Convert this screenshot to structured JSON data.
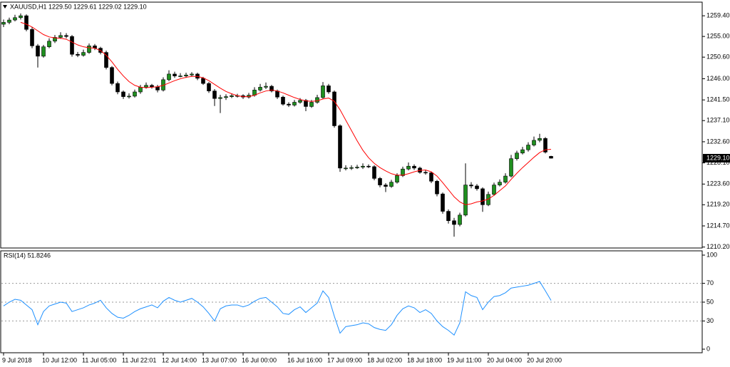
{
  "chart_data": [
    {
      "type": "candlestick",
      "title": "XAUUSD,H1  1229.50 1229.61 1229.02 1229.10",
      "categories": [
        "9 Jul 2018",
        null,
        null,
        null,
        null,
        null,
        null,
        "10 Jul 12:00",
        null,
        null,
        null,
        null,
        null,
        null,
        "11 Jul 05:00",
        null,
        null,
        null,
        null,
        null,
        null,
        "11 Jul 22:01",
        null,
        null,
        null,
        null,
        null,
        null,
        "12 Jul 14:00",
        null,
        null,
        null,
        null,
        null,
        null,
        "13 Jul 07:00",
        null,
        null,
        null,
        null,
        null,
        null,
        "16 Jul 00:00",
        null,
        null,
        null,
        null,
        null,
        null,
        null,
        "16 Jul 16:00",
        null,
        null,
        null,
        null,
        null,
        null,
        "17 Jul 09:00",
        null,
        null,
        null,
        null,
        null,
        null,
        "18 Jul 02:00",
        null,
        null,
        null,
        null,
        null,
        null,
        "18 Jul 18:00",
        null,
        null,
        null,
        null,
        null,
        null,
        "19 Jul 11:00",
        null,
        null,
        null,
        null,
        null,
        null,
        "20 Jul 04:00",
        null,
        null,
        null,
        null,
        null,
        null,
        "20 Jul 20:00",
        null,
        null,
        null,
        null
      ],
      "open": [
        1257.6,
        1258.0,
        1258.5,
        1259.0,
        1259.4,
        1256.5,
        1253.0,
        1250.8,
        1252.8,
        1254.0,
        1254.8,
        1255.2,
        1255.0,
        1251.2,
        1251.0,
        1251.6,
        1253.0,
        1252.5,
        1251.6,
        1248.4,
        1245.0,
        1243.2,
        1242.2,
        1242.3,
        1243.2,
        1244.2,
        1244.6,
        1244.3,
        1243.6,
        1245.8,
        1247.0,
        1246.6,
        1246.6,
        1246.8,
        1247.0,
        1246.1,
        1245.0,
        1243.4,
        1241.8,
        1242.0,
        1242.2,
        1242.4,
        1242.4,
        1242.1,
        1242.5,
        1243.6,
        1244.2,
        1244.4,
        1243.4,
        1242.1,
        1240.6,
        1240.4,
        1241.0,
        1241.4,
        1240.1,
        1241.0,
        1242.0,
        1244.5,
        1243.2,
        1236.0,
        1227.0,
        1227.0,
        1227.1,
        1227.2,
        1227.4,
        1227.3,
        1224.8,
        1223.4,
        1223.1,
        1224.0,
        1225.4,
        1226.8,
        1227.4,
        1227.0,
        1226.1,
        1226.0,
        1224.2,
        1221.5,
        1217.8,
        1215.8,
        1215.0,
        1217.0,
        1223.4,
        1223.2,
        1222.6,
        1219.2,
        1221.4,
        1223.4,
        1224.0,
        1225.3,
        1229.0,
        1230.2,
        1230.9,
        1231.9,
        1232.9,
        1233.3,
        1229.5
      ],
      "high": [
        1258.6,
        1259.0,
        1259.6,
        1259.9,
        1259.7,
        1257.0,
        1253.4,
        1253.2,
        1254.6,
        1255.3,
        1255.9,
        1255.7,
        1255.3,
        1251.7,
        1252.2,
        1253.5,
        1253.4,
        1252.8,
        1252.0,
        1248.7,
        1245.4,
        1243.5,
        1242.9,
        1243.7,
        1244.7,
        1245.2,
        1244.9,
        1244.7,
        1246.3,
        1247.8,
        1247.5,
        1247.2,
        1247.3,
        1247.4,
        1247.3,
        1246.4,
        1245.3,
        1243.8,
        1242.6,
        1242.7,
        1242.9,
        1242.8,
        1242.7,
        1243.0,
        1244.2,
        1244.9,
        1245.2,
        1244.7,
        1243.7,
        1242.4,
        1241.0,
        1241.5,
        1241.9,
        1241.7,
        1241.5,
        1242.6,
        1245.3,
        1244.9,
        1243.5,
        1236.3,
        1227.6,
        1227.6,
        1227.7,
        1228.0,
        1227.8,
        1227.6,
        1225.1,
        1223.8,
        1224.5,
        1225.9,
        1227.3,
        1228.2,
        1227.8,
        1227.3,
        1226.6,
        1226.3,
        1224.5,
        1221.8,
        1218.2,
        1216.4,
        1217.5,
        1228.0,
        1224.0,
        1223.6,
        1222.9,
        1222.0,
        1223.9,
        1224.6,
        1225.9,
        1229.8,
        1230.7,
        1231.5,
        1232.5,
        1233.7,
        1234.3,
        1233.6,
        1229.61
      ],
      "low": [
        1257.0,
        1257.6,
        1258.2,
        1258.6,
        1256.1,
        1252.5,
        1248.4,
        1250.5,
        1252.5,
        1253.6,
        1254.5,
        1254.6,
        1250.7,
        1250.6,
        1250.7,
        1251.3,
        1252.1,
        1251.2,
        1248.0,
        1244.6,
        1242.7,
        1241.7,
        1241.8,
        1242.0,
        1242.8,
        1243.9,
        1243.9,
        1243.1,
        1243.3,
        1245.5,
        1246.2,
        1246.3,
        1246.2,
        1246.5,
        1245.7,
        1244.7,
        1243.0,
        1240.2,
        1238.7,
        1241.5,
        1241.9,
        1242.0,
        1241.7,
        1241.8,
        1242.2,
        1243.3,
        1243.8,
        1243.1,
        1241.7,
        1240.3,
        1240.0,
        1240.1,
        1240.7,
        1239.1,
        1239.8,
        1240.7,
        1241.7,
        1242.8,
        1235.6,
        1226.2,
        1226.5,
        1226.6,
        1226.8,
        1226.8,
        1227.0,
        1224.4,
        1222.9,
        1221.9,
        1222.8,
        1223.7,
        1225.1,
        1226.5,
        1226.6,
        1225.8,
        1225.6,
        1223.8,
        1221.0,
        1217.3,
        1215.2,
        1212.4,
        1214.6,
        1216.7,
        1222.7,
        1222.2,
        1217.7,
        1218.9,
        1221.1,
        1223.1,
        1223.7,
        1225.0,
        1228.6,
        1229.9,
        1230.5,
        1231.6,
        1232.5,
        1230.1,
        1229.02
      ],
      "close": [
        1258.0,
        1258.5,
        1259.0,
        1259.4,
        1256.5,
        1253.0,
        1250.8,
        1252.8,
        1254.0,
        1254.8,
        1255.2,
        1255.0,
        1251.2,
        1251.0,
        1251.6,
        1253.0,
        1252.5,
        1251.6,
        1248.4,
        1245.0,
        1243.2,
        1242.2,
        1242.3,
        1243.2,
        1244.2,
        1244.6,
        1244.3,
        1243.6,
        1245.8,
        1247.0,
        1246.6,
        1246.6,
        1246.8,
        1247.0,
        1246.1,
        1245.0,
        1243.4,
        1241.8,
        1242.0,
        1242.2,
        1242.4,
        1242.4,
        1242.1,
        1242.5,
        1243.6,
        1244.2,
        1244.4,
        1243.4,
        1242.1,
        1240.6,
        1240.4,
        1241.0,
        1241.4,
        1240.1,
        1241.0,
        1242.0,
        1244.5,
        1243.2,
        1236.0,
        1227.0,
        1227.0,
        1227.1,
        1227.2,
        1227.4,
        1227.3,
        1224.8,
        1223.4,
        1223.1,
        1224.0,
        1225.4,
        1226.8,
        1227.4,
        1227.0,
        1226.1,
        1226.0,
        1224.2,
        1221.5,
        1217.8,
        1215.8,
        1215.0,
        1217.0,
        1223.4,
        1223.2,
        1222.6,
        1219.2,
        1221.4,
        1223.4,
        1224.0,
        1225.3,
        1229.0,
        1230.2,
        1230.9,
        1231.9,
        1232.9,
        1233.3,
        1230.4,
        1229.1
      ],
      "up_color": "#1f8f1f",
      "down_color": "#000000",
      "overlay_line": {
        "color": "#ff0000",
        "values": [
          null,
          null,
          null,
          1258.0,
          1257.6,
          1257.0,
          1256.2,
          1255.4,
          1254.9,
          1254.7,
          1254.6,
          1254.4,
          1253.8,
          1253.2,
          1252.8,
          1252.6,
          1252.5,
          1252.0,
          1251.0,
          1249.6,
          1248.0,
          1246.6,
          1245.4,
          1244.6,
          1244.2,
          1244.1,
          1244.2,
          1244.3,
          1244.6,
          1245.1,
          1245.6,
          1246.0,
          1246.3,
          1246.5,
          1246.5,
          1246.2,
          1245.6,
          1244.8,
          1244.0,
          1243.3,
          1242.8,
          1242.4,
          1242.2,
          1242.2,
          1242.5,
          1243.0,
          1243.4,
          1243.6,
          1243.4,
          1243.0,
          1242.5,
          1242.0,
          1241.6,
          1241.3,
          1241.2,
          1241.3,
          1241.7,
          1241.9,
          1241.2,
          1239.4,
          1237.2,
          1235.0,
          1232.8,
          1230.8,
          1229.2,
          1228.0,
          1227.1,
          1226.4,
          1225.8,
          1225.5,
          1225.5,
          1225.8,
          1226.2,
          1226.5,
          1226.6,
          1226.2,
          1225.3,
          1223.9,
          1222.4,
          1220.9,
          1219.8,
          1219.2,
          1219.4,
          1219.8,
          1220.0,
          1220.4,
          1221.2,
          1222.2,
          1223.2,
          1224.6,
          1225.9,
          1227.1,
          1228.2,
          1229.3,
          1230.3,
          1230.9,
          1231.0
        ]
      },
      "ylim": [
        1210.0,
        1262.3
      ],
      "yticks": [
        {
          "value": 1259.4,
          "label": "1259.40"
        },
        {
          "value": 1255,
          "label": "1255.00"
        },
        {
          "value": 1250.6,
          "label": "1250.60"
        },
        {
          "value": 1246,
          "label": "1246.00"
        },
        {
          "value": 1241.5,
          "label": "1241.50"
        },
        {
          "value": 1237.1,
          "label": "1237.10"
        },
        {
          "value": 1232.6,
          "label": "1232.60"
        },
        {
          "value": 1228.1,
          "label": "1228.10"
        },
        {
          "value": 1223.6,
          "label": "1223.60"
        },
        {
          "value": 1219.2,
          "label": "1219.20"
        },
        {
          "value": 1214.7,
          "label": "1214.70"
        },
        {
          "value": 1210.2,
          "label": "1210.20"
        }
      ],
      "current_price": {
        "value": 1229.1,
        "label": "1229.10"
      }
    },
    {
      "type": "line",
      "title": "RSI(14) 51.8246",
      "color": "#1e90ff",
      "values": [
        46,
        50,
        53,
        52,
        47,
        42,
        26,
        40,
        46,
        48,
        50,
        49,
        40,
        42,
        44,
        47,
        49,
        52,
        44,
        38,
        34,
        33,
        36,
        40,
        43,
        45,
        47,
        44,
        51,
        55,
        52,
        50,
        52,
        54,
        50,
        45,
        38,
        30,
        43,
        46,
        47,
        47,
        45,
        47,
        51,
        54,
        55,
        50,
        45,
        38,
        37,
        42,
        45,
        39,
        44,
        49,
        62,
        55,
        35,
        17,
        24,
        25,
        26,
        28,
        27,
        23,
        21,
        20,
        26,
        36,
        43,
        46,
        44,
        39,
        42,
        38,
        30,
        24,
        20,
        15,
        28,
        61,
        57,
        55,
        42,
        50,
        56,
        57,
        60,
        65,
        66,
        67,
        68,
        70,
        72,
        62,
        51.8246
      ],
      "ylim": [
        0,
        100
      ],
      "yticks": [
        100,
        70,
        50,
        30,
        0
      ],
      "levels": [
        70,
        50,
        30
      ]
    }
  ]
}
